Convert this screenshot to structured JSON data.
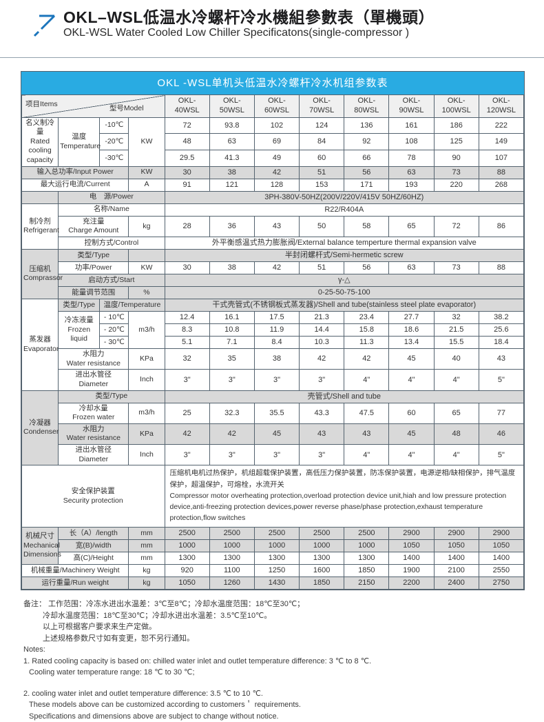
{
  "header": {
    "title_zh": "OKL–WSL低温水冷螺杆冷水機組參數表（單機頭）",
    "title_en": "OKL-WSL Water Cooled Low Chiller Specificatons(single-compressor )"
  },
  "table": {
    "caption": "OKL -WSL单机头低温水冷螺杆冷水机组参数表",
    "rows": [
      {
        "bg": "hd",
        "cells": [
          {
            "cls": "corner",
            "c": 4,
            "t": "项目Items\n型号Model",
            "n": "corner-header"
          },
          {
            "cls": "model",
            "t": "OKL-\n40WSL",
            "n": "model-header"
          },
          {
            "cls": "model",
            "t": "OKL-\n50WSL",
            "n": "model-header"
          },
          {
            "cls": "model",
            "t": "OKL-\n60WSL",
            "n": "model-header"
          },
          {
            "cls": "model",
            "t": "OKL-\n70WSL",
            "n": "model-header"
          },
          {
            "cls": "model",
            "t": "OKL-\n80WSL",
            "n": "model-header"
          },
          {
            "cls": "model",
            "t": "OKL-\n90WSL",
            "n": "model-header"
          },
          {
            "cls": "model",
            "t": "OKL-\n100WSL",
            "n": "model-header"
          },
          {
            "cls": "model",
            "t": "OKL-\n120WSL",
            "n": "model-header"
          }
        ]
      },
      {
        "bg": "w",
        "cells": [
          {
            "cls": "cat catw",
            "r": 3,
            "t": "名义制冷量\nRated cooling\ncapacity",
            "n": "category-rated-cooling-capacity"
          },
          {
            "cls": "lab",
            "r": 3,
            "t": "温度\nTemperature",
            "n": "row-label-temperature"
          },
          {
            "cls": "lab",
            "t": "-10℃",
            "n": "row-label-minus10"
          },
          {
            "cls": "unit",
            "r": 3,
            "t": "KW",
            "n": "unit-label"
          }
        ],
        "vals": [
          "72",
          "93.8",
          "102",
          "124",
          "136",
          "161",
          "186",
          "222"
        ]
      },
      {
        "bg": "w",
        "cells": [
          {
            "cls": "lab",
            "t": "-20℃",
            "n": "row-label-minus20"
          }
        ],
        "vals": [
          "48",
          "63",
          "69",
          "84",
          "92",
          "108",
          "125",
          "149"
        ]
      },
      {
        "bg": "w",
        "cells": [
          {
            "cls": "lab",
            "t": "-30℃",
            "n": "row-label-minus30"
          }
        ],
        "vals": [
          "29.5",
          "41.3",
          "49",
          "60",
          "66",
          "78",
          "90",
          "107"
        ]
      },
      {
        "bg": "g",
        "cells": [
          {
            "cls": "lab",
            "c": 3,
            "t": "输入总功率/Input Power",
            "n": "row-label-input-power"
          },
          {
            "cls": "unit",
            "t": "KW",
            "n": "unit-label"
          }
        ],
        "vals": [
          "30",
          "38",
          "42",
          "51",
          "56",
          "63",
          "73",
          "88"
        ]
      },
      {
        "bg": "w",
        "cells": [
          {
            "cls": "lab",
            "c": 3,
            "t": "最大运行电流/Current",
            "n": "row-label-current"
          },
          {
            "cls": "unit",
            "t": "A",
            "n": "unit-label"
          }
        ],
        "vals": [
          "91",
          "121",
          "128",
          "153",
          "171",
          "193",
          "220",
          "268"
        ]
      },
      {
        "bg": "g",
        "cells": [
          {
            "cls": "lab",
            "t": "",
            "n": "empty-cell"
          },
          {
            "cls": "lab",
            "c": 3,
            "t": "电　源/Power",
            "n": "row-label-power-supply"
          },
          {
            "cls": "val",
            "c": 8,
            "t": "3PH-380V-50HZ(200V/220V/415V  50HZ/60HZ)",
            "n": "value-power-supply"
          }
        ]
      },
      {
        "bg": "w",
        "cells": [
          {
            "cls": "cat catw",
            "r": 3,
            "t": "制冷剂\nRefrigerant",
            "n": "category-refrigerant"
          },
          {
            "cls": "lab",
            "c": 3,
            "t": "名称/Name",
            "n": "row-label-name"
          },
          {
            "cls": "val",
            "c": 8,
            "t": "R22/R404A",
            "n": "value-refrigerant-name"
          }
        ]
      },
      {
        "bg": "w",
        "cells": [
          {
            "cls": "lab",
            "c": 2,
            "t": "充注量\nCharge Amount",
            "n": "row-label-charge-amount"
          },
          {
            "cls": "unit",
            "t": "kg",
            "n": "unit-label"
          }
        ],
        "vals": [
          "28",
          "36",
          "43",
          "50",
          "58",
          "65",
          "72",
          "86"
        ]
      },
      {
        "bg": "w",
        "cells": [
          {
            "cls": "lab",
            "c": 3,
            "t": "控制方式/Control",
            "n": "row-label-control"
          },
          {
            "cls": "val",
            "c": 8,
            "t": "外平衡感温式热力膨胀阀/External balance temperture thermal expansion valve",
            "n": "value-control"
          }
        ]
      },
      {
        "bg": "g",
        "cells": [
          {
            "cls": "cat catg",
            "r": 4,
            "t": "压缩机\nComprassor",
            "n": "category-compressor"
          },
          {
            "cls": "lab",
            "c": 2,
            "t": "类型/Type",
            "n": "row-label-type"
          },
          {
            "cls": "unit",
            "t": "",
            "n": "empty-cell"
          },
          {
            "cls": "val",
            "c": 8,
            "t": "半封闭螺杆式/Semi-hermetic screw",
            "n": "value-compressor-type"
          }
        ]
      },
      {
        "bg": "w",
        "cells": [
          {
            "cls": "lab",
            "c": 2,
            "t": "功率/Power",
            "n": "row-label-compressor-power"
          },
          {
            "cls": "unit",
            "t": "KW",
            "n": "unit-label"
          }
        ],
        "vals": [
          "30",
          "38",
          "42",
          "51",
          "56",
          "63",
          "73",
          "88"
        ]
      },
      {
        "bg": "g",
        "cells": [
          {
            "cls": "lab",
            "c": 3,
            "t": "启动方式/Start",
            "n": "row-label-start"
          },
          {
            "cls": "val",
            "c": 8,
            "t": "γ-△",
            "n": "value-start-mode"
          }
        ]
      },
      {
        "bg": "g",
        "cells": [
          {
            "cls": "lab",
            "c": 2,
            "t": "能量调节范围",
            "n": "row-label-energy-range"
          },
          {
            "cls": "unit",
            "t": "%",
            "n": "unit-label"
          },
          {
            "cls": "val",
            "c": 8,
            "t": "0-25-50-75-100",
            "n": "value-energy-range"
          }
        ]
      },
      {
        "bg": "g",
        "cells": [
          {
            "cls": "cat catw",
            "r": 6,
            "t": "蒸发器\nEvaporator",
            "n": "category-evaporator"
          },
          {
            "cls": "lab",
            "t": "类型/Type",
            "n": "row-label-type"
          },
          {
            "cls": "lab",
            "c": 2,
            "t": "温度/Temperature",
            "n": "row-label-temperature"
          },
          {
            "cls": "val",
            "c": 8,
            "t": "干式壳管式(不锈钢板式蒸发器)/Shell and tube(stainless steel plate evaporator)",
            "n": "value-evaporator-type"
          }
        ]
      },
      {
        "bg": "w",
        "cells": [
          {
            "cls": "lab",
            "r": 3,
            "t": "冷冻液量\nFrozen liquid",
            "n": "row-label-frozen-liquid"
          },
          {
            "cls": "lab",
            "t": "- 10℃",
            "n": "row-label-minus10"
          },
          {
            "cls": "unit",
            "r": 3,
            "t": "m3/h",
            "n": "unit-label"
          }
        ],
        "vals": [
          "12.4",
          "16.1",
          "17.5",
          "21.3",
          "23.4",
          "27.7",
          "32",
          "38.2"
        ]
      },
      {
        "bg": "w",
        "cells": [
          {
            "cls": "lab",
            "t": "- 20℃",
            "n": "row-label-minus20"
          }
        ],
        "vals": [
          "8.3",
          "10.8",
          "11.9",
          "14.4",
          "15.8",
          "18.6",
          "21.5",
          "25.6"
        ]
      },
      {
        "bg": "w",
        "cells": [
          {
            "cls": "lab",
            "t": "- 30℃",
            "n": "row-label-minus30"
          }
        ],
        "vals": [
          "5.1",
          "7.1",
          "8.4",
          "10.3",
          "11.3",
          "13.4",
          "15.5",
          "18.4"
        ]
      },
      {
        "bg": "w",
        "cells": [
          {
            "cls": "lab",
            "c": 2,
            "t": "水阻力\nWater resistance",
            "n": "row-label-water-resistance"
          },
          {
            "cls": "unit",
            "t": "KPa",
            "n": "unit-label"
          }
        ],
        "vals": [
          "32",
          "35",
          "38",
          "42",
          "42",
          "45",
          "40",
          "43"
        ]
      },
      {
        "bg": "w",
        "cells": [
          {
            "cls": "lab",
            "c": 2,
            "t": "进出水管径\nDiameter",
            "n": "row-label-diameter"
          },
          {
            "cls": "unit",
            "t": "Inch",
            "n": "unit-label"
          }
        ],
        "vals": [
          "3\"",
          "3\"",
          "3\"",
          "3\"",
          "4\"",
          "4\"",
          "4\"",
          "5\""
        ]
      },
      {
        "bg": "g",
        "cells": [
          {
            "cls": "cat catg",
            "r": 4,
            "t": "冷凝器\nCondenser",
            "n": "category-condenser"
          },
          {
            "cls": "lab",
            "c": 3,
            "t": "类型/Type",
            "n": "row-label-type"
          },
          {
            "cls": "val",
            "c": 8,
            "t": "壳管式/Shell and tube",
            "n": "value-condenser-type"
          }
        ]
      },
      {
        "bg": "w",
        "cells": [
          {
            "cls": "lab",
            "c": 2,
            "t": "冷却水量\nFrozen water",
            "n": "row-label-cooling-water"
          },
          {
            "cls": "unit",
            "t": "m3/h",
            "n": "unit-label"
          }
        ],
        "vals": [
          "25",
          "32.3",
          "35.5",
          "43.3",
          "47.5",
          "60",
          "65",
          "77"
        ]
      },
      {
        "bg": "g",
        "cells": [
          {
            "cls": "lab",
            "c": 2,
            "t": "水阻力\nWater resistance",
            "n": "row-label-water-resistance"
          },
          {
            "cls": "unit",
            "t": "KPa",
            "n": "unit-label"
          }
        ],
        "vals": [
          "42",
          "42",
          "45",
          "43",
          "43",
          "45",
          "48",
          "46"
        ]
      },
      {
        "bg": "w",
        "cells": [
          {
            "cls": "lab",
            "c": 2,
            "t": "进出水管径\nDiameter",
            "n": "row-label-diameter"
          },
          {
            "cls": "unit",
            "t": "Inch",
            "n": "unit-label"
          }
        ],
        "vals": [
          "3\"",
          "3\"",
          "3\"",
          "3\"",
          "4\"",
          "4\"",
          "4\"",
          "5\""
        ]
      },
      {
        "bg": "w",
        "cells": [
          {
            "cls": "lab",
            "c": 4,
            "t": "安全保护装置\nSecurity protection",
            "n": "row-label-security-protection"
          },
          {
            "cls": "txt",
            "c": 8,
            "t": "压缩机电机过热保护，机组超载保护装置，高低压力保护装置，防冻保护装置，电源逆相/缺相保护，排气温度保护，超温保护，可熔栓，水流开关\nCompressor motor overheating protection,overload protection device unit,hiah and low pressure protection device,anti-freezing protection devices,power reverse phase/phase protection,exhaust temperature protection,flow switches",
            "n": "value-security-protection"
          }
        ]
      },
      {
        "bg": "g",
        "cells": [
          {
            "cls": "cat catg",
            "r": 3,
            "t": "机械尺寸\nMechanical\nDimensions",
            "n": "category-mechanical-dimensions"
          },
          {
            "cls": "lab",
            "c": 2,
            "t": "长（A）/length",
            "n": "row-label-length"
          },
          {
            "cls": "unit",
            "t": "mm",
            "n": "unit-label"
          }
        ],
        "vals": [
          "2500",
          "2500",
          "2500",
          "2500",
          "2500",
          "2900",
          "2900",
          "2900"
        ]
      },
      {
        "bg": "g",
        "cells": [
          {
            "cls": "lab",
            "c": 2,
            "t": "宽(B)/width",
            "n": "row-label-width"
          },
          {
            "cls": "unit",
            "t": "mm",
            "n": "unit-label"
          }
        ],
        "vals": [
          "1000",
          "1000",
          "1000",
          "1000",
          "1000",
          "1050",
          "1050",
          "1050"
        ]
      },
      {
        "bg": "w",
        "cells": [
          {
            "cls": "lab",
            "c": 2,
            "t": "高(C)/Height",
            "n": "row-label-height"
          },
          {
            "cls": "unit",
            "t": "mm",
            "n": "unit-label"
          }
        ],
        "vals": [
          "1300",
          "1300",
          "1300",
          "1300",
          "1300",
          "1400",
          "1400",
          "1400"
        ]
      },
      {
        "bg": "w",
        "cells": [
          {
            "cls": "lab",
            "c": 3,
            "t": "机械重量/Machinery Weight",
            "n": "row-label-machinery-weight"
          },
          {
            "cls": "unit",
            "t": "kg",
            "n": "unit-label"
          }
        ],
        "vals": [
          "920",
          "1100",
          "1250",
          "1600",
          "1850",
          "1900",
          "2100",
          "2550"
        ]
      },
      {
        "bg": "g",
        "cells": [
          {
            "cls": "lab",
            "c": 3,
            "t": "运行重量/Run weight",
            "n": "row-label-run-weight"
          },
          {
            "cls": "unit",
            "t": "kg",
            "n": "unit-label"
          }
        ],
        "vals": [
          "1050",
          "1260",
          "1430",
          "1850",
          "2150",
          "2200",
          "2400",
          "2750"
        ]
      }
    ]
  },
  "notes": {
    "zh": [
      "备注：  工作范围：冷冻水进出水温差：3℃至8℃；冷却水温度范围：18℃至30℃；",
      "冷却水温度范围：18℃至30℃；冷却水进出水温差：3.5℃至10℃。",
      "以上可根据客户要求来生产定做。",
      "上述规格参数尺寸如有变更，恕不另行通知。"
    ],
    "label": "Notes:",
    "en1": "1. Rated cooling capacity is based on: chilled water inlet and outlet temperature  difference: 3 ℃ to 8 ℃.",
    "en2": "Cooling water temperature  range: 18 ℃ to 30 ℃;",
    "en3": "2. cooling water inlet and outlet temperature  difference: 3.5 ℃ to 10 ℃.",
    "en4": "These models above can be customized according to customers＇  requirements.",
    "en5": "Specifications  and dimensions above are subject to change without notice."
  }
}
